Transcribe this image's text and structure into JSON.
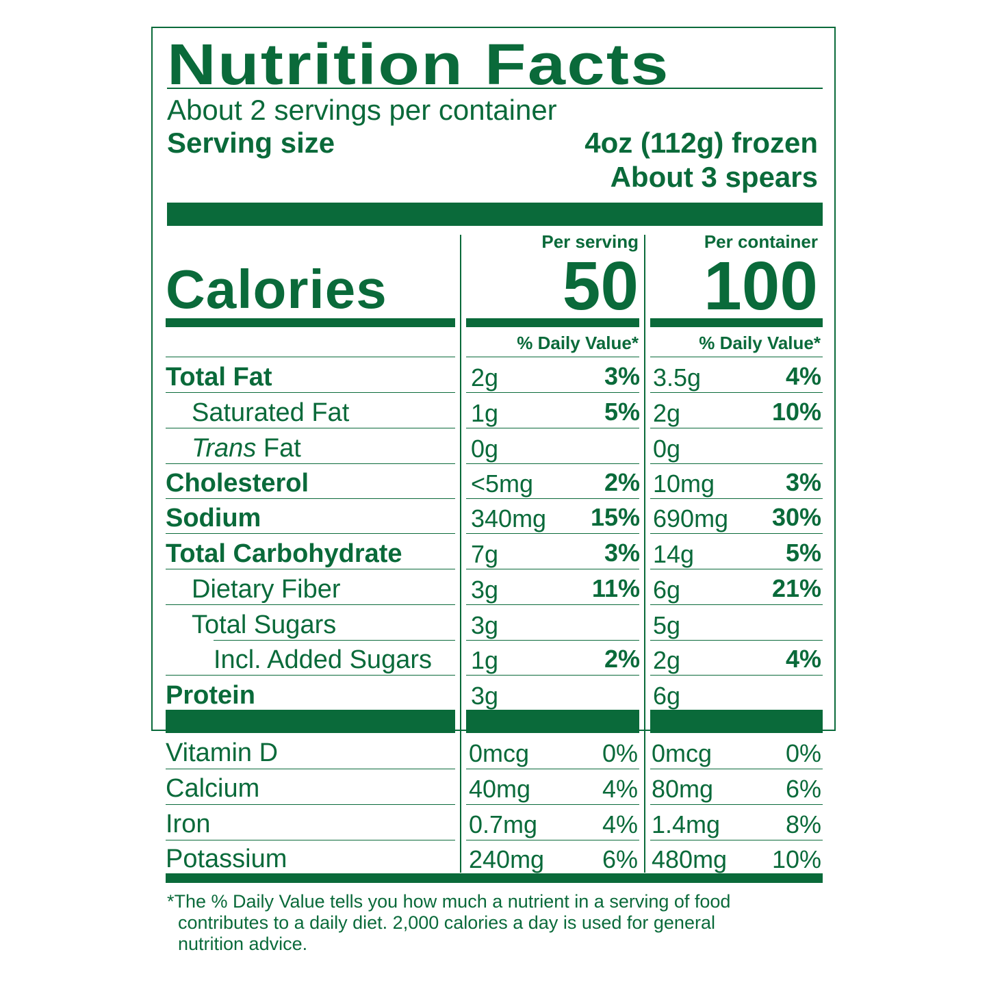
{
  "label": {
    "title": "Nutrition Facts",
    "servings_per_container": "About 2 servings per container",
    "serving_size_label": "Serving size",
    "serving_size_value": "4oz (112g) frozen",
    "serving_size_extra": "About 3 spears",
    "col_serving": "Per serving",
    "col_container": "Per container",
    "calories_label": "Calories",
    "calories_serving": "50",
    "calories_container": "100",
    "dv_header": "% Daily Value*",
    "nutrients": [
      {
        "label": "Total Fat",
        "s_amt": "2g",
        "s_dv": "3%",
        "c_amt": "3.5g",
        "c_dv": "4%"
      },
      {
        "label": "Saturated Fat",
        "s_amt": "1g",
        "s_dv": "5%",
        "c_amt": "2g",
        "c_dv": "10%"
      },
      {
        "label_italic": "Trans",
        "label": " Fat",
        "s_amt": "0g",
        "s_dv": "",
        "c_amt": "0g",
        "c_dv": ""
      },
      {
        "label": "Cholesterol",
        "s_amt": "<5mg",
        "s_dv": "2%",
        "c_amt": "10mg",
        "c_dv": "3%"
      },
      {
        "label": "Sodium",
        "s_amt": "340mg",
        "s_dv": "15%",
        "c_amt": "690mg",
        "c_dv": "30%"
      },
      {
        "label": "Total Carbohydrate",
        "s_amt": "7g",
        "s_dv": "3%",
        "c_amt": "14g",
        "c_dv": "5%"
      },
      {
        "label": "Dietary Fiber",
        "s_amt": "3g",
        "s_dv": "11%",
        "c_amt": "6g",
        "c_dv": "21%"
      },
      {
        "label": "Total Sugars",
        "s_amt": "3g",
        "s_dv": "",
        "c_amt": "5g",
        "c_dv": ""
      },
      {
        "label": "Incl. Added Sugars",
        "s_amt": "1g",
        "s_dv": "2%",
        "c_amt": "2g",
        "c_dv": "4%"
      },
      {
        "label": "Protein",
        "s_amt": "3g",
        "s_dv": "",
        "c_amt": "6g",
        "c_dv": ""
      }
    ],
    "vitamins": [
      {
        "label": "Vitamin D",
        "s_amt": "0mcg",
        "s_dv": "0%",
        "c_amt": "0mcg",
        "c_dv": "0%"
      },
      {
        "label": "Calcium",
        "s_amt": "40mg",
        "s_dv": "4%",
        "c_amt": "80mg",
        "c_dv": "6%"
      },
      {
        "label": "Iron",
        "s_amt": "0.7mg",
        "s_dv": "4%",
        "c_amt": "1.4mg",
        "c_dv": "8%"
      },
      {
        "label": "Potassium",
        "s_amt": "240mg",
        "s_dv": "6%",
        "c_amt": "480mg",
        "c_dv": "10%"
      }
    ],
    "footnote_line1": "*The % Daily Value tells you how much a nutrient in a serving of food",
    "footnote_line2": "contributes to a daily diet. 2,000 calories a day is used for general",
    "footnote_line3": "nutrition advice."
  }
}
